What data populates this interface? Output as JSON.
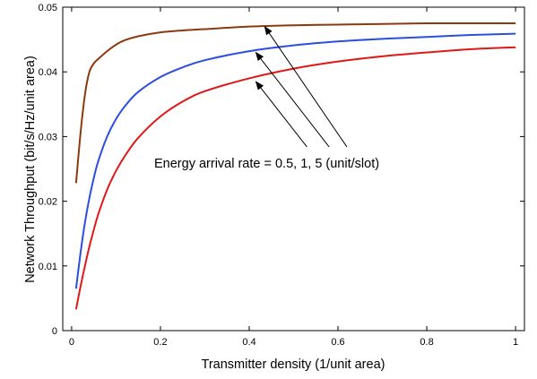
{
  "chart_data": {
    "type": "line",
    "xlabel": "Transmitter density (1/unit area)",
    "ylabel": "Network Throughput (bit/s/Hz/unit area)",
    "xlim": [
      -0.02,
      1.02
    ],
    "ylim": [
      0,
      0.05
    ],
    "x_ticks": [
      0,
      0.2,
      0.4,
      0.6,
      0.8,
      1
    ],
    "x_tick_labels": [
      "0",
      "0.2",
      "0.4",
      "0.6",
      "0.8",
      "1"
    ],
    "y_ticks": [
      0,
      0.01,
      0.02,
      0.03,
      0.04,
      0.05
    ],
    "y_tick_labels": [
      "0",
      "0.01",
      "0.02",
      "0.03",
      "0.04",
      "0.05"
    ],
    "grid": false,
    "annotation": "Energy arrival rate = 0.5,  1,  5  (unit/slot)",
    "x": [
      0.01,
      0.02,
      0.03,
      0.04,
      0.05,
      0.06,
      0.08,
      0.1,
      0.12,
      0.15,
      0.2,
      0.25,
      0.3,
      0.4,
      0.5,
      0.6,
      0.7,
      0.8,
      0.9,
      1.0
    ],
    "series": [
      {
        "color": "#8b3a0f",
        "values": [
          0.0228,
          0.0305,
          0.0365,
          0.04,
          0.0413,
          0.042,
          0.0432,
          0.0442,
          0.0449,
          0.0455,
          0.0461,
          0.0464,
          0.0466,
          0.047,
          0.0472,
          0.0473,
          0.0474,
          0.0475,
          0.0475,
          0.0475
        ]
      },
      {
        "color": "#2b4ee0",
        "values": [
          0.0065,
          0.012,
          0.0167,
          0.0205,
          0.0236,
          0.0262,
          0.03,
          0.0327,
          0.0347,
          0.0369,
          0.0392,
          0.0407,
          0.0418,
          0.0432,
          0.0441,
          0.0447,
          0.0451,
          0.0454,
          0.0457,
          0.0459
        ]
      },
      {
        "color": "#e01818",
        "values": [
          0.0033,
          0.0068,
          0.01,
          0.013,
          0.0156,
          0.018,
          0.0218,
          0.0247,
          0.027,
          0.0298,
          0.0331,
          0.0354,
          0.037,
          0.039,
          0.0405,
          0.0416,
          0.0424,
          0.043,
          0.0435,
          0.0438
        ]
      }
    ],
    "arrows": [
      {
        "from": [
          0.53,
          0.0284
        ],
        "to": [
          0.415,
          0.0385
        ]
      },
      {
        "from": [
          0.58,
          0.0284
        ],
        "to": [
          0.415,
          0.043
        ]
      },
      {
        "from": [
          0.62,
          0.0284
        ],
        "to": [
          0.435,
          0.047
        ]
      }
    ]
  }
}
